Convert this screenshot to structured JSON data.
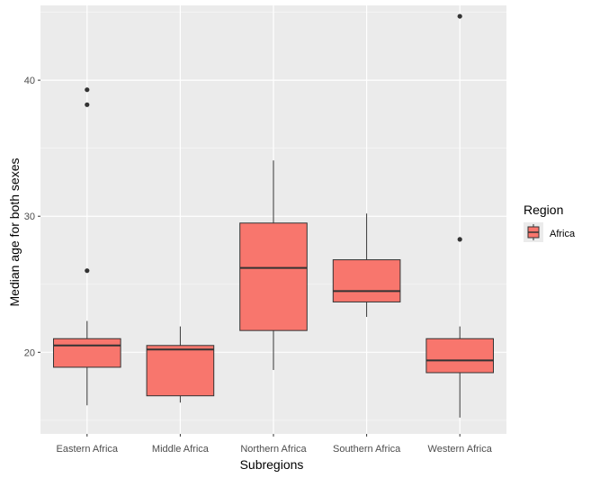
{
  "chart_data": {
    "type": "boxplot",
    "title": "",
    "xlabel": "Subregions",
    "ylabel": "Median age for both sexes",
    "ylim": [
      14,
      45.5
    ],
    "yticks": [
      20,
      30,
      40
    ],
    "categories": [
      "Eastern Africa",
      "Middle Africa",
      "Northern Africa",
      "Southern Africa",
      "Western Africa"
    ],
    "boxes": [
      {
        "category": "Eastern Africa",
        "min": 16.1,
        "q1": 18.9,
        "median": 20.5,
        "q3": 21.0,
        "max": 22.3,
        "outliers": [
          26.0,
          38.2,
          39.3
        ]
      },
      {
        "category": "Middle Africa",
        "min": 16.3,
        "q1": 16.8,
        "median": 20.2,
        "q3": 20.5,
        "max": 21.9,
        "outliers": []
      },
      {
        "category": "Northern Africa",
        "min": 18.7,
        "q1": 21.6,
        "median": 26.2,
        "q3": 29.5,
        "max": 34.1,
        "outliers": []
      },
      {
        "category": "Southern Africa",
        "min": 22.6,
        "q1": 23.7,
        "median": 24.5,
        "q3": 26.8,
        "max": 30.2,
        "outliers": []
      },
      {
        "category": "Western Africa",
        "min": 15.2,
        "q1": 18.5,
        "median": 19.4,
        "q3": 21.0,
        "max": 21.9,
        "outliers": [
          28.3,
          44.7
        ]
      }
    ],
    "fill_color": "#f8766d",
    "legend": {
      "title": "Region",
      "items": [
        "Africa"
      ],
      "position": "right"
    },
    "grid": true
  },
  "colors": {
    "panel": "#ebebeb",
    "grid_major": "#ffffff",
    "box_fill": "#f8766d",
    "line": "#333333"
  }
}
